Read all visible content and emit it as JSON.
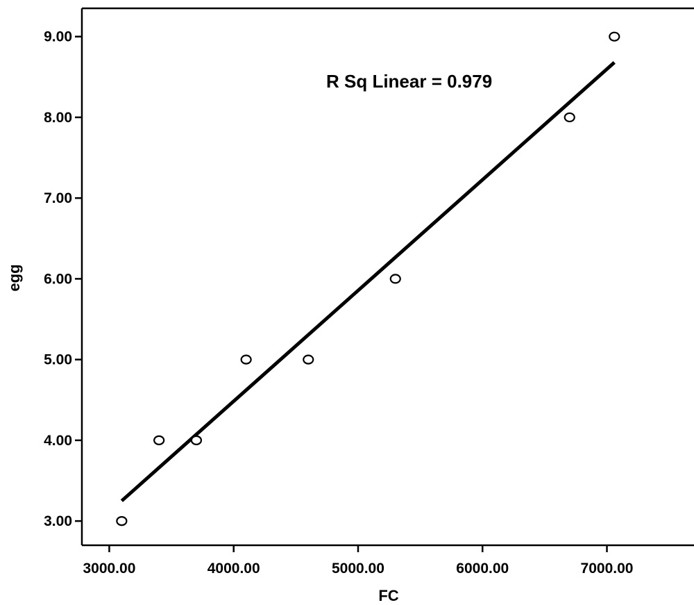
{
  "chart_data": {
    "type": "scatter",
    "title": "",
    "xlabel": "FC",
    "ylabel": "egg",
    "xlim": [
      2780,
      7700
    ],
    "ylim": [
      2.7,
      9.35
    ],
    "x_ticks": [
      3000,
      4000,
      5000,
      6000,
      7000
    ],
    "x_tick_labels": [
      "3000.00",
      "4000.00",
      "5000.00",
      "6000.00",
      "7000.00"
    ],
    "y_ticks": [
      3,
      4,
      5,
      6,
      7,
      8,
      9
    ],
    "y_tick_labels": [
      "3.00",
      "4.00",
      "5.00",
      "6.00",
      "7.00",
      "8.00",
      "9.00"
    ],
    "grid": false,
    "series": [
      {
        "points": [
          {
            "x": 3100,
            "y": 3
          },
          {
            "x": 3400,
            "y": 4
          },
          {
            "x": 3700,
            "y": 4
          },
          {
            "x": 4100,
            "y": 5
          },
          {
            "x": 4600,
            "y": 5
          },
          {
            "x": 5300,
            "y": 6
          },
          {
            "x": 6700,
            "y": 8
          },
          {
            "x": 7060,
            "y": 9
          }
        ]
      }
    ],
    "fit_line": {
      "x": [
        3100,
        7060
      ],
      "y": [
        3.25,
        8.68
      ]
    },
    "annotation": "R Sq Linear = 0.979"
  }
}
